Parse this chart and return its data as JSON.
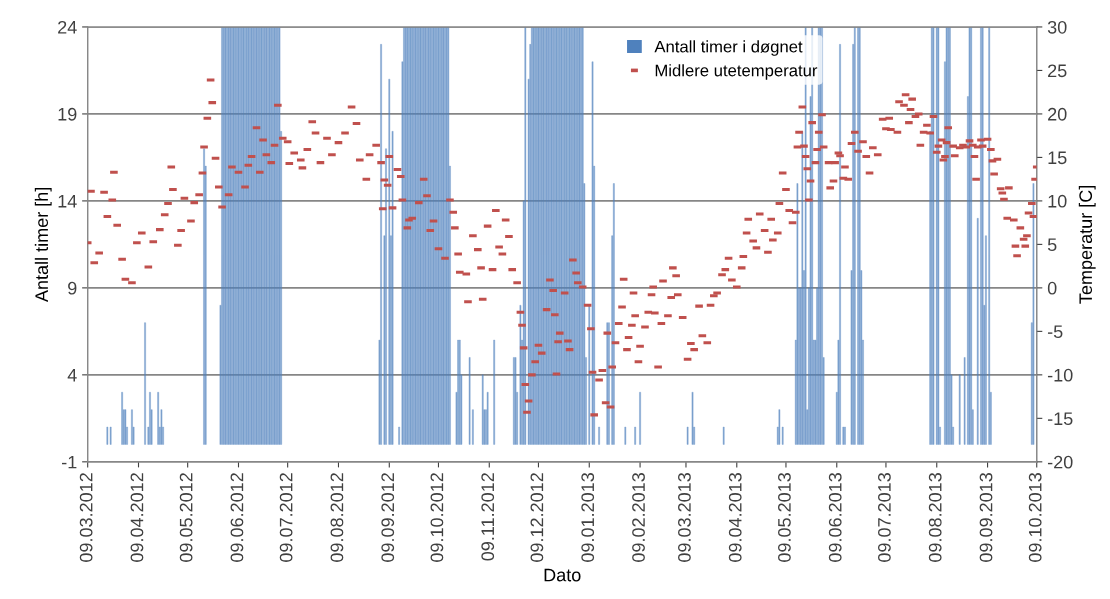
{
  "chart_data": {
    "type": "bar",
    "xlabel": "Dato",
    "ylabel": "Antall timer [h]",
    "y2label": "Temperatur [C]",
    "xlim": [
      "2012-03-09",
      "2013-10-09"
    ],
    "xticks": [
      {
        "value": "2012-03-09",
        "label": "09.03.2012"
      },
      {
        "value": "2012-04-09",
        "label": "09.04.2012"
      },
      {
        "value": "2012-05-09",
        "label": "09.05.2012"
      },
      {
        "value": "2012-06-09",
        "label": "09.06.2012"
      },
      {
        "value": "2012-07-09",
        "label": "09.07.2012"
      },
      {
        "value": "2012-08-09",
        "label": "09.08.2012"
      },
      {
        "value": "2012-09-09",
        "label": "09.09.2012"
      },
      {
        "value": "2012-10-09",
        "label": "09.10.2012"
      },
      {
        "value": "2012-11-09",
        "label": "09.11.2012"
      },
      {
        "value": "2012-12-09",
        "label": "09.12.2012"
      },
      {
        "value": "2013-01-09",
        "label": "09.01.2013"
      },
      {
        "value": "2013-02-09",
        "label": "09.02.2013"
      },
      {
        "value": "2013-03-09",
        "label": "09.03.2013"
      },
      {
        "value": "2013-04-09",
        "label": "09.04.2013"
      },
      {
        "value": "2013-05-09",
        "label": "09.05.2013"
      },
      {
        "value": "2013-06-09",
        "label": "09.06.2013"
      },
      {
        "value": "2013-07-09",
        "label": "09.07.2013"
      },
      {
        "value": "2013-08-09",
        "label": "09.08.2013"
      },
      {
        "value": "2013-09-09",
        "label": "09.09.2013"
      },
      {
        "value": "2013-10-09",
        "label": "09.10.2013"
      }
    ],
    "ylim": [
      -1,
      24
    ],
    "yticks": [
      -1,
      4,
      9,
      14,
      19,
      24
    ],
    "y2lim": [
      -20,
      30
    ],
    "y2ticks": [
      -20,
      -15,
      -10,
      -5,
      0,
      5,
      10,
      15,
      20,
      25,
      30
    ],
    "grid": "y",
    "legend": "top",
    "series": [
      {
        "name": "Antall timer i døgnet",
        "color": "#4f81bd",
        "x": [
          "2012-03-21",
          "2012-03-23",
          "2012-03-30",
          "2012-03-31",
          "2012-04-01",
          "2012-04-02",
          "2012-04-05",
          "2012-04-06",
          "2012-04-13",
          "2012-04-15",
          "2012-04-16",
          "2012-04-17",
          "2012-04-21",
          "2012-04-22",
          "2012-04-23",
          "2012-04-24",
          "2012-05-19",
          "2012-05-20",
          "2012-05-29",
          "2012-05-30",
          "2012-05-31",
          "2012-06-01",
          "2012-06-02",
          "2012-06-03",
          "2012-06-04",
          "2012-06-05",
          "2012-06-06",
          "2012-06-07",
          "2012-06-08",
          "2012-06-09",
          "2012-06-10",
          "2012-06-11",
          "2012-06-12",
          "2012-06-13",
          "2012-06-14",
          "2012-06-15",
          "2012-06-16",
          "2012-06-17",
          "2012-06-18",
          "2012-06-19",
          "2012-06-20",
          "2012-06-21",
          "2012-06-22",
          "2012-06-23",
          "2012-06-24",
          "2012-06-25",
          "2012-06-26",
          "2012-06-27",
          "2012-06-28",
          "2012-06-29",
          "2012-06-30",
          "2012-07-01",
          "2012-07-02",
          "2012-07-03",
          "2012-07-04",
          "2012-07-05",
          "2012-09-03",
          "2012-09-04",
          "2012-09-06",
          "2012-09-07",
          "2012-09-09",
          "2012-09-10",
          "2012-09-11",
          "2012-09-15",
          "2012-09-17",
          "2012-09-18",
          "2012-09-19",
          "2012-09-20",
          "2012-09-21",
          "2012-09-22",
          "2012-09-23",
          "2012-09-24",
          "2012-09-25",
          "2012-09-26",
          "2012-09-27",
          "2012-09-28",
          "2012-09-29",
          "2012-09-30",
          "2012-10-01",
          "2012-10-02",
          "2012-10-03",
          "2012-10-04",
          "2012-10-05",
          "2012-10-06",
          "2012-10-07",
          "2012-10-08",
          "2012-10-09",
          "2012-10-10",
          "2012-10-11",
          "2012-10-12",
          "2012-10-13",
          "2012-10-14",
          "2012-10-15",
          "2012-10-16",
          "2012-10-20",
          "2012-10-21",
          "2012-10-22",
          "2012-10-23",
          "2012-10-28",
          "2012-10-30",
          "2012-11-05",
          "2012-11-06",
          "2012-11-07",
          "2012-11-08",
          "2012-11-12",
          "2012-11-24",
          "2012-11-25",
          "2012-11-26",
          "2012-11-28",
          "2012-11-29",
          "2012-11-30",
          "2012-12-01",
          "2012-12-03",
          "2012-12-04",
          "2012-12-05",
          "2012-12-06",
          "2012-12-07",
          "2012-12-08",
          "2012-12-09",
          "2012-12-10",
          "2012-12-11",
          "2012-12-12",
          "2012-12-13",
          "2012-12-14",
          "2012-12-15",
          "2012-12-16",
          "2012-12-17",
          "2012-12-18",
          "2012-12-19",
          "2012-12-20",
          "2012-12-21",
          "2012-12-22",
          "2012-12-23",
          "2012-12-24",
          "2012-12-25",
          "2012-12-26",
          "2012-12-27",
          "2012-12-28",
          "2012-12-29",
          "2012-12-30",
          "2012-12-31",
          "2013-01-01",
          "2013-01-02",
          "2013-01-03",
          "2013-01-04",
          "2013-01-05",
          "2013-01-06",
          "2013-01-07",
          "2013-01-09",
          "2013-01-11",
          "2013-01-12",
          "2013-01-15",
          "2013-01-20",
          "2013-01-21",
          "2013-01-23",
          "2013-01-24",
          "2013-01-31",
          "2013-02-06",
          "2013-02-09",
          "2013-03-10",
          "2013-03-13",
          "2013-03-14",
          "2013-04-01",
          "2013-05-04",
          "2013-05-05",
          "2013-05-07",
          "2013-05-15",
          "2013-05-16",
          "2013-05-17",
          "2013-05-18",
          "2013-05-19",
          "2013-05-20",
          "2013-05-21",
          "2013-05-22",
          "2013-05-23",
          "2013-05-24",
          "2013-05-25",
          "2013-05-26",
          "2013-05-27",
          "2013-05-28",
          "2013-05-29",
          "2013-05-30",
          "2013-05-31",
          "2013-06-01",
          "2013-06-09",
          "2013-06-10",
          "2013-06-11",
          "2013-06-13",
          "2013-06-14",
          "2013-06-18",
          "2013-06-19",
          "2013-06-20",
          "2013-06-22",
          "2013-06-23",
          "2013-06-24",
          "2013-06-25",
          "2013-08-05",
          "2013-08-06",
          "2013-08-07",
          "2013-08-09",
          "2013-08-10",
          "2013-08-11",
          "2013-08-14",
          "2013-08-15",
          "2013-08-16",
          "2013-08-17",
          "2013-08-18",
          "2013-08-19",
          "2013-08-23",
          "2013-08-26",
          "2013-08-28",
          "2013-08-29",
          "2013-08-30",
          "2013-08-31",
          "2013-09-03",
          "2013-09-05",
          "2013-09-06",
          "2013-09-07",
          "2013-09-08",
          "2013-09-10",
          "2013-09-11",
          "2013-10-06",
          "2013-10-07"
        ],
        "values": [
          1,
          1,
          3,
          2,
          2,
          1,
          2,
          1,
          7,
          1,
          3,
          2,
          3,
          1,
          2,
          1,
          17,
          16,
          8,
          24,
          24,
          24,
          24,
          24,
          24,
          24,
          24,
          24,
          24,
          24,
          24,
          24,
          24,
          24,
          24,
          24,
          24,
          24,
          24,
          24,
          24,
          24,
          24,
          24,
          24,
          24,
          24,
          24,
          24,
          24,
          24,
          24,
          24,
          24,
          24,
          18,
          6,
          23,
          12,
          17,
          21,
          12,
          18,
          1,
          22,
          24,
          24,
          24,
          24,
          24,
          24,
          24,
          24,
          24,
          24,
          24,
          24,
          24,
          24,
          24,
          24,
          24,
          24,
          24,
          24,
          24,
          24,
          24,
          24,
          24,
          24,
          24,
          24,
          16,
          3,
          6,
          6,
          4,
          5,
          2,
          4,
          2,
          2,
          3,
          6,
          5,
          5,
          3,
          8,
          6,
          14,
          24,
          21,
          23,
          24,
          24,
          24,
          24,
          24,
          24,
          24,
          24,
          24,
          24,
          24,
          24,
          24,
          24,
          24,
          24,
          24,
          24,
          24,
          24,
          24,
          24,
          24,
          24,
          24,
          24,
          24,
          24,
          24,
          24,
          24,
          24,
          15,
          5,
          8,
          22,
          16,
          1,
          7,
          7,
          12,
          15,
          1,
          1,
          3,
          1,
          3,
          1,
          1,
          1,
          2,
          1,
          6,
          15,
          9,
          9,
          18,
          10,
          24,
          2,
          9,
          20,
          24,
          6,
          6,
          9,
          24,
          24,
          24,
          5,
          3,
          6,
          23,
          1,
          1,
          10,
          23,
          24,
          24,
          24,
          10,
          6,
          18,
          24,
          24,
          24,
          24,
          1,
          22,
          24,
          24,
          24,
          4,
          1,
          4,
          5,
          20,
          24,
          24,
          2,
          13,
          24,
          24,
          8,
          12,
          24,
          3,
          7,
          15
        ]
      },
      {
        "name": "Midlere utetemperatur",
        "type": "scatter",
        "axis": "y2",
        "color": "#c0504d",
        "x": [
          "2012-03-09",
          "2012-03-11",
          "2012-03-13",
          "2012-03-16",
          "2012-03-19",
          "2012-03-21",
          "2012-03-24",
          "2012-03-25",
          "2012-03-27",
          "2012-03-30",
          "2012-04-01",
          "2012-04-05",
          "2012-04-08",
          "2012-04-11",
          "2012-04-15",
          "2012-04-18",
          "2012-04-22",
          "2012-04-25",
          "2012-04-27",
          "2012-04-29",
          "2012-04-30",
          "2012-05-03",
          "2012-05-05",
          "2012-05-07",
          "2012-05-11",
          "2012-05-13",
          "2012-05-16",
          "2012-05-18",
          "2012-05-19",
          "2012-05-21",
          "2012-05-23",
          "2012-05-24",
          "2012-05-26",
          "2012-05-28",
          "2012-05-30",
          "2012-06-03",
          "2012-06-05",
          "2012-06-09",
          "2012-06-13",
          "2012-06-15",
          "2012-06-17",
          "2012-06-20",
          "2012-06-22",
          "2012-06-24",
          "2012-06-26",
          "2012-06-29",
          "2012-07-01",
          "2012-07-03",
          "2012-07-06",
          "2012-07-09",
          "2012-07-10",
          "2012-07-13",
          "2012-07-17",
          "2012-07-18",
          "2012-07-21",
          "2012-07-24",
          "2012-07-26",
          "2012-07-29",
          "2012-08-02",
          "2012-08-05",
          "2012-08-09",
          "2012-08-13",
          "2012-08-17",
          "2012-08-20",
          "2012-08-22",
          "2012-08-26",
          "2012-08-28",
          "2012-09-01",
          "2012-09-04",
          "2012-09-05",
          "2012-09-06",
          "2012-09-08",
          "2012-09-09",
          "2012-09-11",
          "2012-09-14",
          "2012-09-16",
          "2012-09-17",
          "2012-09-20",
          "2012-09-21",
          "2012-09-23",
          "2012-09-27",
          "2012-09-30",
          "2012-10-02",
          "2012-10-04",
          "2012-10-06",
          "2012-10-09",
          "2012-10-13",
          "2012-10-16",
          "2012-10-18",
          "2012-10-19",
          "2012-10-21",
          "2012-10-22",
          "2012-10-26",
          "2012-10-27",
          "2012-10-30",
          "2012-11-02",
          "2012-11-04",
          "2012-11-05",
          "2012-11-08",
          "2012-11-11",
          "2012-11-13",
          "2012-11-15",
          "2012-11-17",
          "2012-11-19",
          "2012-11-21",
          "2012-11-23",
          "2012-11-26",
          "2012-11-28",
          "2012-11-29",
          "2012-11-30",
          "2012-12-01",
          "2012-12-02",
          "2012-12-03",
          "2012-12-05",
          "2012-12-07",
          "2012-12-09",
          "2012-12-11",
          "2012-12-14",
          "2012-12-16",
          "2012-12-18",
          "2012-12-19",
          "2012-12-20",
          "2012-12-21",
          "2012-12-22",
          "2012-12-25",
          "2012-12-27",
          "2012-12-28",
          "2012-12-30",
          "2013-01-01",
          "2013-01-02",
          "2013-01-05",
          "2013-01-08",
          "2013-01-10",
          "2013-01-11",
          "2013-01-12",
          "2013-01-15",
          "2013-01-17",
          "2013-01-19",
          "2013-01-20",
          "2013-01-22",
          "2013-01-23",
          "2013-01-25",
          "2013-01-27",
          "2013-01-29",
          "2013-01-30",
          "2013-02-01",
          "2013-02-02",
          "2013-02-04",
          "2013-02-05",
          "2013-02-06",
          "2013-02-08",
          "2013-02-09",
          "2013-02-12",
          "2013-02-14",
          "2013-02-16",
          "2013-02-17",
          "2013-02-18",
          "2013-02-20",
          "2013-02-22",
          "2013-02-23",
          "2013-02-26",
          "2013-02-28",
          "2013-03-01",
          "2013-03-03",
          "2013-03-04",
          "2013-03-07",
          "2013-03-10",
          "2013-03-12",
          "2013-03-14",
          "2013-03-17",
          "2013-03-19",
          "2013-03-22",
          "2013-03-24",
          "2013-03-26",
          "2013-03-28",
          "2013-03-31",
          "2013-04-02",
          "2013-04-04",
          "2013-04-06",
          "2013-04-09",
          "2013-04-12",
          "2013-04-13",
          "2013-04-15",
          "2013-04-16",
          "2013-04-19",
          "2013-04-21",
          "2013-04-23",
          "2013-04-26",
          "2013-04-28",
          "2013-04-30",
          "2013-05-01",
          "2013-05-04",
          "2013-05-05",
          "2013-05-07",
          "2013-05-09",
          "2013-05-11",
          "2013-05-13",
          "2013-05-15",
          "2013-05-16",
          "2013-05-17",
          "2013-05-19",
          "2013-05-20",
          "2013-05-21",
          "2013-05-22",
          "2013-05-23",
          "2013-05-24",
          "2013-05-25",
          "2013-05-27",
          "2013-05-28",
          "2013-05-29",
          "2013-05-31",
          "2013-06-01",
          "2013-06-04",
          "2013-06-05",
          "2013-06-07",
          "2013-06-08",
          "2013-06-10",
          "2013-06-11",
          "2013-06-13",
          "2013-06-14",
          "2013-06-16",
          "2013-06-18",
          "2013-06-20",
          "2013-06-22",
          "2013-06-25",
          "2013-06-27",
          "2013-06-29",
          "2013-07-01",
          "2013-07-04",
          "2013-07-07",
          "2013-07-09",
          "2013-07-11",
          "2013-07-12",
          "2013-07-16",
          "2013-07-17",
          "2013-07-20",
          "2013-07-21",
          "2013-07-23",
          "2013-07-24",
          "2013-07-25",
          "2013-07-27",
          "2013-07-29",
          "2013-07-30",
          "2013-08-01",
          "2013-08-03",
          "2013-08-05",
          "2013-08-07",
          "2013-08-09",
          "2013-08-10",
          "2013-08-12",
          "2013-08-13",
          "2013-08-14",
          "2013-08-15",
          "2013-08-16",
          "2013-08-19",
          "2013-08-20",
          "2013-08-23",
          "2013-08-25",
          "2013-08-27",
          "2013-08-29",
          "2013-08-31",
          "2013-09-01",
          "2013-09-02",
          "2013-09-03",
          "2013-09-05",
          "2013-09-06",
          "2013-09-09",
          "2013-09-11",
          "2013-09-12",
          "2013-09-13",
          "2013-09-15",
          "2013-09-17",
          "2013-09-18",
          "2013-09-19",
          "2013-09-21",
          "2013-09-22",
          "2013-09-25",
          "2013-09-26",
          "2013-09-27",
          "2013-09-29",
          "2013-10-01",
          "2013-10-02",
          "2013-10-03",
          "2013-10-04",
          "2013-10-06",
          "2013-10-07",
          "2013-10-08",
          "2013-10-09"
        ],
        "values": [
          5.2,
          11.1,
          2.9,
          4.0,
          11.0,
          8.2,
          10.1,
          13.3,
          7.2,
          3.3,
          1.0,
          0.6,
          5.2,
          6.3,
          2.4,
          5.3,
          6.7,
          8.4,
          9.7,
          13.9,
          11.3,
          4.9,
          6.6,
          10.3,
          7.7,
          9.8,
          10.7,
          13.2,
          16.2,
          19.5,
          23.9,
          21.3,
          14.9,
          11.6,
          9.3,
          10.7,
          13.9,
          13.3,
          11.6,
          14.1,
          15.1,
          18.4,
          13.3,
          17.0,
          15.3,
          14.4,
          16.4,
          21.0,
          17.2,
          16.8,
          14.3,
          15.5,
          14.7,
          13.8,
          15.9,
          19.1,
          17.8,
          14.4,
          17.2,
          15.3,
          16.7,
          17.8,
          20.8,
          18.9,
          14.7,
          12.5,
          15.3,
          16.4,
          14.4,
          9.1,
          12.4,
          11.8,
          15.1,
          9.2,
          13.6,
          12.8,
          10.1,
          6.9,
          7.8,
          8.0,
          9.8,
          12.5,
          10.6,
          6.6,
          7.7,
          4.5,
          3.4,
          10.1,
          8.7,
          6.9,
          3.9,
          1.8,
          1.6,
          -1.6,
          6.0,
          4.4,
          2.3,
          -1.3,
          7.1,
          2.1,
          8.9,
          4.7,
          3.9,
          7.8,
          5.9,
          2.1,
          0.6,
          -2.8,
          -4.3,
          -6.9,
          -11.1,
          -14.3,
          -13.0,
          -10.0,
          -8.5,
          -6.6,
          -7.5,
          -2.5,
          0.9,
          -0.3,
          -3.1,
          -9.9,
          -6.2,
          -5.2,
          -0.6,
          -6.1,
          -7.1,
          3.2,
          1.7,
          0.6,
          0.1,
          -2.0,
          -4.7,
          -9.7,
          -14.6,
          -10.6,
          -9.5,
          -13.2,
          -5.2,
          -13.7,
          -9.1,
          -6.3,
          -4.1,
          -2.2,
          1.0,
          -7.1,
          -5.7,
          -4.3,
          -0.6,
          -3.2,
          -8.5,
          -6.7,
          -4.5,
          -2.8,
          -0.8,
          0.1,
          -2.9,
          -9.1,
          -4.1,
          0.8,
          -3.2,
          -1.1,
          2.3,
          1.4,
          -0.8,
          -3.4,
          -8.2,
          -6.4,
          -7.1,
          -2.1,
          -5.5,
          -6.3,
          -2.0,
          -0.9,
          -0.6,
          1.5,
          2.1,
          3.4,
          0.9,
          0.1,
          2.3,
          3.6,
          6.3,
          7.9,
          5.4,
          4.6,
          8.5,
          6.6,
          4.1,
          7.9,
          5.5,
          6.3,
          9.7,
          13.2,
          11.3,
          8.9,
          7.5,
          8.7,
          16.2,
          17.9,
          20.8,
          16.3,
          15.1,
          13.7,
          10.1,
          12.3,
          19.0,
          14.4,
          15.9,
          17.9,
          19.9,
          16.2,
          14.4,
          11.5,
          12.3,
          14.4,
          15.5,
          15.2,
          12.6,
          13.9,
          12.5,
          16.6,
          17.9,
          15.7,
          16.8,
          15.1,
          13.2,
          16.1,
          15.3,
          19.4,
          18.3,
          19.5,
          18.2,
          17.9,
          21.4,
          21.0,
          22.2,
          19.0,
          20.5,
          21.7,
          19.7,
          20.0,
          16.4,
          17.9,
          18.7,
          17.8,
          19.7,
          15.6,
          16.3,
          17.0,
          14.7,
          15.1,
          16.7,
          18.4,
          16.3,
          15.2,
          16.1,
          16.4,
          16.2,
          16.9,
          16.4,
          15.1,
          12.5,
          16.2,
          17.0,
          16.3,
          17.1,
          15.9,
          14.6,
          13.1,
          14.8,
          11.4,
          10.9,
          10.2,
          8.0,
          11.5,
          7.8,
          4.8,
          3.7,
          6.9,
          5.6,
          4.8,
          6.0,
          8.6,
          9.7,
          8.2,
          12.5,
          13.9
        ]
      }
    ]
  }
}
